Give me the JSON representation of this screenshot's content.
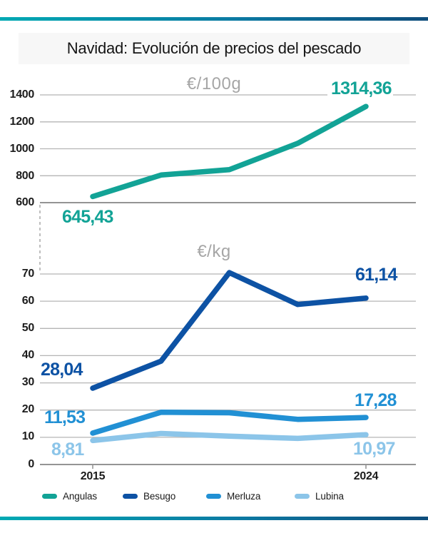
{
  "header": {
    "title": "Navidad: Evolución de precios del pescado"
  },
  "colors": {
    "accent_gradient_left": "#00a9b3",
    "accent_gradient_right": "#0f4d7c",
    "grid": "#b5b5b5",
    "unit_label": "#a6a6a6",
    "angulas": "#12a396",
    "besugo": "#0d52a4",
    "merluza": "#2190d4",
    "lubina": "#8cc5e9"
  },
  "chart_data": [
    {
      "type": "line",
      "unit_label": "€/100g",
      "categories": [
        "2015",
        "",
        "",
        "",
        "2024"
      ],
      "yticks": [
        600,
        800,
        1000,
        1200,
        1400
      ],
      "ylim": [
        600,
        1400
      ],
      "grid": true,
      "series": [
        {
          "name": "Angulas",
          "color": "#12a396",
          "values": [
            645.43,
            805,
            845,
            1040,
            1314.36
          ],
          "start_label": "645,43",
          "end_label": "1314,36"
        }
      ]
    },
    {
      "type": "line",
      "unit_label": "€/kg",
      "categories": [
        "2015",
        "",
        "",
        "",
        "2024"
      ],
      "yticks": [
        0,
        10,
        20,
        30,
        40,
        50,
        60,
        70
      ],
      "ylim": [
        0,
        70
      ],
      "grid": true,
      "legend_position": "bottom",
      "series": [
        {
          "name": "Besugo",
          "color": "#0d52a4",
          "values": [
            28.04,
            38,
            70.5,
            58.8,
            61.14
          ],
          "start_label": "28,04",
          "end_label": "61,14"
        },
        {
          "name": "Merluza",
          "color": "#2190d4",
          "values": [
            11.53,
            19.2,
            19,
            16.6,
            17.28
          ],
          "start_label": "11,53",
          "end_label": "17,28"
        },
        {
          "name": "Lubina",
          "color": "#8cc5e9",
          "values": [
            8.81,
            11.4,
            10.4,
            9.6,
            10.97
          ],
          "start_label": "8,81",
          "end_label": "10,97"
        }
      ]
    }
  ],
  "legend": {
    "items": [
      {
        "label": "Angulas",
        "color": "#12a396"
      },
      {
        "label": "Besugo",
        "color": "#0d52a4"
      },
      {
        "label": "Merluza",
        "color": "#2190d4"
      },
      {
        "label": "Lubina",
        "color": "#8cc5e9"
      }
    ]
  }
}
